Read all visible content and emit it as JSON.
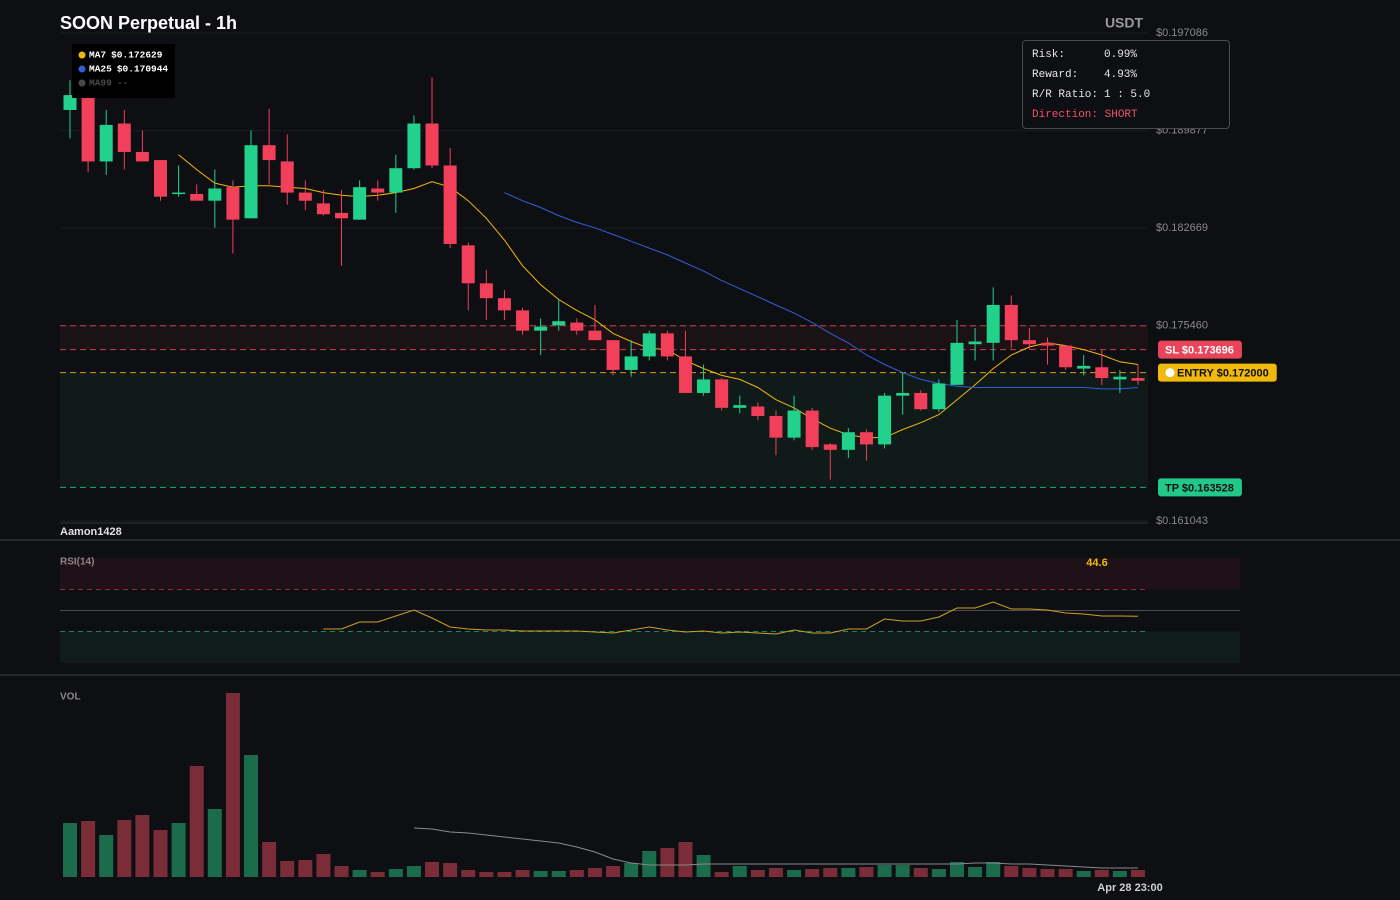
{
  "chart_data": [
    {
      "type": "candlestick",
      "title": "SOON Perpetual - 1h",
      "unit": "USDT",
      "watermark": "Aamon1428",
      "up_color": "#22d18b",
      "down_color": "#f23f5a",
      "grid": true,
      "ylim": [
        0.161043,
        0.197086
      ],
      "yticks": [
        {
          "value": 0.161043,
          "label": "$0.161043"
        },
        {
          "value": 0.17546,
          "label": "$0.175460"
        },
        {
          "value": 0.182669,
          "label": "$0.182669"
        },
        {
          "value": 0.189877,
          "label": "$0.189877"
        },
        {
          "value": 0.197086,
          "label": "$0.197086"
        }
      ],
      "categories": [
        null,
        null,
        null,
        null,
        null,
        null,
        null,
        null,
        null,
        null,
        null,
        null,
        null,
        null,
        null,
        null,
        null,
        null,
        null,
        null,
        null,
        null,
        null,
        null,
        null,
        null,
        null,
        null,
        null,
        null,
        null,
        null,
        null,
        null,
        null,
        null,
        null,
        null,
        null,
        null,
        null,
        null,
        null,
        null,
        null,
        null,
        null,
        null,
        null,
        null,
        null,
        null,
        null,
        null,
        null,
        null,
        null,
        null,
        null,
        "Apr 28 23:00"
      ],
      "open": [
        0.1914,
        0.1924,
        0.1876,
        0.1904,
        0.1883,
        0.1877,
        0.1852,
        0.1852,
        0.1847,
        0.1857,
        0.1834,
        0.1888,
        0.1876,
        0.1853,
        0.1845,
        0.1838,
        0.1833,
        0.1856,
        0.1853,
        0.1871,
        0.1904,
        0.1873,
        0.1814,
        0.1786,
        0.1775,
        0.1766,
        0.1751,
        0.1755,
        0.1757,
        0.1751,
        0.1744,
        0.1722,
        0.1732,
        0.1749,
        0.1732,
        0.1705,
        0.1715,
        0.1694,
        0.1695,
        0.1688,
        0.1672,
        0.1692,
        0.1667,
        0.1663,
        0.1676,
        0.1667,
        0.1703,
        0.1705,
        0.1693,
        0.1711,
        0.1741,
        0.1742,
        0.177,
        0.1744,
        0.1742,
        0.174,
        0.1723,
        0.1724,
        0.1715,
        0.1716
      ],
      "high": [
        0.1936,
        0.1925,
        0.1914,
        0.1914,
        0.1899,
        0.1877,
        0.1873,
        0.1859,
        0.187,
        0.1862,
        0.1899,
        0.1915,
        0.1896,
        0.1862,
        0.1855,
        0.1855,
        0.1862,
        0.1862,
        0.1881,
        0.191,
        0.1938,
        0.1886,
        0.1816,
        0.1796,
        0.1781,
        0.1768,
        0.176,
        0.1774,
        0.176,
        0.177,
        0.1744,
        0.1744,
        0.1751,
        0.1751,
        0.1751,
        0.1726,
        0.1716,
        0.1703,
        0.1698,
        0.1692,
        0.1703,
        0.1694,
        0.1668,
        0.1679,
        0.1678,
        0.1705,
        0.172,
        0.1707,
        0.1715,
        0.1759,
        0.1753,
        0.1783,
        0.1777,
        0.1753,
        0.1746,
        0.174,
        0.1733,
        0.1737,
        0.1722,
        0.1726
      ],
      "low": [
        0.1893,
        0.1868,
        0.1866,
        0.187,
        0.1876,
        0.1847,
        0.185,
        0.1847,
        0.1827,
        0.1808,
        0.1834,
        0.1859,
        0.1844,
        0.184,
        0.1836,
        0.1799,
        0.1833,
        0.1847,
        0.1838,
        0.187,
        0.1871,
        0.1812,
        0.1766,
        0.1759,
        0.1759,
        0.1748,
        0.1733,
        0.1751,
        0.1748,
        0.1744,
        0.1718,
        0.1717,
        0.1729,
        0.1729,
        0.1705,
        0.1703,
        0.1692,
        0.169,
        0.1685,
        0.1659,
        0.167,
        0.1663,
        0.1641,
        0.1657,
        0.1655,
        0.1664,
        0.1689,
        0.1692,
        0.1691,
        0.1711,
        0.1729,
        0.1729,
        0.1738,
        0.1737,
        0.1726,
        0.1722,
        0.1718,
        0.1711,
        0.1705,
        0.1711
      ],
      "close": [
        0.1925,
        0.1876,
        0.1903,
        0.1883,
        0.1876,
        0.185,
        0.1853,
        0.1847,
        0.1856,
        0.1833,
        0.1888,
        0.1877,
        0.1853,
        0.1847,
        0.1837,
        0.1834,
        0.1857,
        0.1853,
        0.1871,
        0.1904,
        0.1873,
        0.1815,
        0.1786,
        0.1775,
        0.1766,
        0.1751,
        0.1754,
        0.1758,
        0.1751,
        0.1744,
        0.1722,
        0.1732,
        0.1749,
        0.1732,
        0.1705,
        0.1715,
        0.1694,
        0.1696,
        0.1688,
        0.1672,
        0.1692,
        0.1665,
        0.1663,
        0.1676,
        0.1667,
        0.1703,
        0.1705,
        0.1693,
        0.1712,
        0.1742,
        0.1743,
        0.177,
        0.1744,
        0.1741,
        0.174,
        0.1724,
        0.1725,
        0.1716,
        0.1717,
        0.1714
      ],
      "series": [
        {
          "name": "MA7",
          "color": "#f0b90b",
          "legend_value": {
            "value": 0.172629,
            "label": "$0.172629"
          },
          "values": [
            null,
            null,
            null,
            null,
            null,
            null,
            0.1881,
            0.187,
            0.186,
            0.1857,
            0.1858,
            0.1858,
            0.1857,
            0.1856,
            0.1853,
            0.1851,
            0.185,
            0.1851,
            0.1853,
            0.1856,
            0.1861,
            0.1857,
            0.1847,
            0.1834,
            0.1818,
            0.1799,
            0.1785,
            0.1774,
            0.1766,
            0.1759,
            0.1749,
            0.1743,
            0.1738,
            0.1737,
            0.1729,
            0.1723,
            0.1718,
            0.1715,
            0.1709,
            0.17,
            0.1694,
            0.1686,
            0.1679,
            0.1674,
            0.1672,
            0.1672,
            0.1678,
            0.1683,
            0.1689,
            0.17,
            0.1711,
            0.1723,
            0.1733,
            0.1739,
            0.1742,
            0.174,
            0.1737,
            0.1733,
            0.1728,
            0.1726
          ]
        },
        {
          "name": "MA25",
          "color": "#2f5fd8",
          "legend_value": {
            "value": 0.170944,
            "label": "$0.170944"
          },
          "values": [
            null,
            null,
            null,
            null,
            null,
            null,
            null,
            null,
            null,
            null,
            null,
            null,
            null,
            null,
            null,
            null,
            null,
            null,
            null,
            null,
            null,
            null,
            null,
            null,
            0.1853,
            0.1847,
            0.1842,
            0.1836,
            0.1831,
            0.1827,
            0.1822,
            0.1817,
            0.1812,
            0.1807,
            0.1801,
            0.1795,
            0.1788,
            0.1782,
            0.1776,
            0.177,
            0.1764,
            0.1757,
            0.1749,
            0.1742,
            0.1733,
            0.1726,
            0.172,
            0.1715,
            0.1712,
            0.171,
            0.1709,
            0.1709,
            0.1709,
            0.1709,
            0.1709,
            0.1709,
            0.1709,
            0.1708,
            0.1708,
            0.1709
          ]
        },
        {
          "name": "MA99",
          "color": "#4a4a4a",
          "legend_value": "--"
        }
      ],
      "levels": [
        {
          "value": 0.17546,
          "color": "#e8455a"
        },
        {
          "value": 0.173696,
          "label": "SL $0.173696",
          "color": "#e8455a",
          "text_color": "#ffffff"
        },
        {
          "value": 0.172,
          "label": "ENTRY $0.172000",
          "color": "#f0b90b",
          "text_color": "#111111",
          "icon": true
        },
        {
          "value": 0.163528,
          "label": "TP $0.163528",
          "color": "#22c78a",
          "text_color": "#111111"
        }
      ]
    },
    {
      "type": "line",
      "title": "RSI(14)",
      "color": "#c9a227",
      "ylim": [
        0,
        100
      ],
      "overbought": 70,
      "midline": 50,
      "oversold": 30,
      "values": [
        null,
        null,
        null,
        null,
        null,
        null,
        null,
        null,
        null,
        null,
        null,
        null,
        null,
        null,
        32.4,
        32.4,
        39.0,
        39.0,
        44.8,
        50.5,
        42.9,
        34.3,
        32.4,
        31.4,
        31.4,
        30.5,
        30.5,
        30.5,
        30.5,
        29.5,
        28.6,
        31.4,
        34.3,
        31.4,
        29.5,
        30.5,
        28.6,
        29.5,
        28.6,
        27.6,
        31.4,
        28.6,
        28.6,
        32.4,
        32.4,
        41.9,
        40.0,
        40.0,
        43.8,
        52.4,
        52.4,
        58.1,
        51.4,
        51.4,
        50.5,
        47.6,
        46.7,
        44.8,
        44.8,
        44.6
      ]
    },
    {
      "type": "bar",
      "title": "VOL",
      "up_color": "#1b6b4d",
      "down_color": "#7a2c38",
      "ylim": [
        0,
        200
      ],
      "ma_color": "#8a8a8a",
      "values": [
        54,
        56,
        42,
        57,
        62,
        47,
        54,
        111,
        68,
        184,
        122,
        35,
        16,
        17,
        23,
        11,
        7,
        5,
        8,
        11,
        15,
        14,
        7,
        5,
        5,
        7,
        6,
        6,
        7,
        9,
        11,
        14,
        26,
        29,
        35,
        22,
        5,
        11,
        7,
        9,
        7,
        8,
        9,
        9,
        10,
        12,
        12,
        9,
        8,
        15,
        10,
        15,
        11,
        9,
        8,
        8,
        6,
        7,
        6,
        7
      ],
      "ma_values": [
        null,
        null,
        null,
        null,
        null,
        null,
        null,
        null,
        null,
        null,
        null,
        null,
        null,
        null,
        null,
        null,
        null,
        null,
        null,
        49,
        48,
        45,
        44,
        42,
        40,
        38,
        36,
        34,
        30,
        25,
        18,
        14,
        12,
        12,
        12,
        13,
        13,
        13,
        13,
        13,
        13,
        13,
        13,
        13,
        13,
        13,
        13,
        13,
        13,
        13,
        14,
        14,
        13,
        13,
        12,
        11,
        10,
        9,
        9,
        9
      ]
    }
  ],
  "risk_panel": {
    "rows": [
      [
        "Risk:",
        "0.99%"
      ],
      [
        "Reward:",
        "4.93%"
      ],
      [
        "R/R Ratio:",
        "1 : 5.0"
      ]
    ],
    "direction": "Direction: SHORT"
  }
}
